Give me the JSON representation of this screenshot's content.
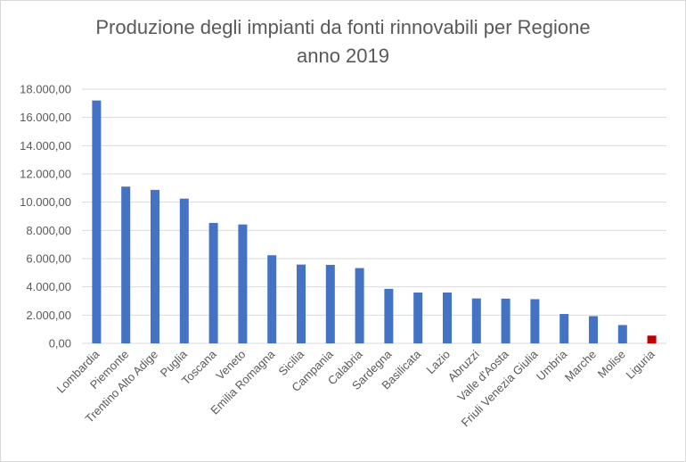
{
  "chart_data": {
    "type": "bar",
    "title": "Produzione degli impianti da fonti rinnovabili per Regione",
    "subtitle": "anno 2019",
    "xlabel": "",
    "ylabel": "",
    "ylim": [
      0,
      18000
    ],
    "yticks": [
      "0,00",
      "2.000,00",
      "4.000,00",
      "6.000,00",
      "8.000,00",
      "10.000,00",
      "12.000,00",
      "14.000,00",
      "16.000,00",
      "18.000,00"
    ],
    "grid": true,
    "categories": [
      "Lombardia",
      "Piemonte",
      "Trentino Alto Adige",
      "Puglia",
      "Toscana",
      "Veneto",
      "Emilia Romagna",
      "Sicilia",
      "Campania",
      "Calabria",
      "Sardegna",
      "Basilicata",
      "Lazio",
      "Abruzzi",
      "Valle d'Aosta",
      "Friuli Venezia Giulia",
      "Umbria",
      "Marche",
      "Molise",
      "Liguria"
    ],
    "values": [
      17200,
      11100,
      10870,
      10250,
      8530,
      8420,
      6240,
      5580,
      5560,
      5330,
      3860,
      3600,
      3600,
      3180,
      3170,
      3130,
      2080,
      1930,
      1300,
      550
    ],
    "colors": {
      "default": "#4472C4",
      "highlight": "#C00000",
      "highlight_category": "Liguria"
    }
  }
}
